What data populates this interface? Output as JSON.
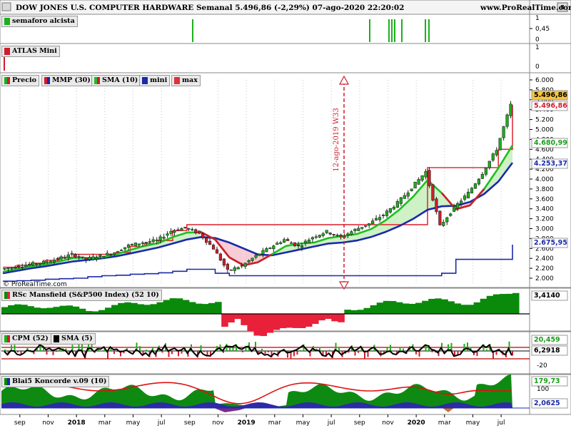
{
  "header": {
    "title": "DOW JONES U.S. COMPUTER HARDWARE Semanal 5.496,86 (-2,29%) 07-ago-2020 22:20:02",
    "site": "www.ProRealTime.com",
    "watermark": "© ProRealTime.com"
  },
  "panels": {
    "semaforo": {
      "label": "semaforo alcista",
      "ticks": [
        "1",
        "0,45",
        "0"
      ]
    },
    "atlas": {
      "label": "ATLAS Mini",
      "ticks": [
        "1",
        "0"
      ]
    },
    "price": {
      "legend": [
        "Precio",
        "MMP (30)",
        "SMA (10)",
        "mini",
        "max"
      ],
      "ticks": [
        "6.000",
        "5.800",
        "5.600",
        "5.400",
        "5.200",
        "5.000",
        "4.800",
        "4.600",
        "4.400",
        "4.200",
        "4.000",
        "3.800",
        "3.600",
        "3.400",
        "3.200",
        "3.000",
        "2.800",
        "2.600",
        "2.400",
        "2.200",
        "2.000"
      ],
      "annotation": "12-ago-2019 W33",
      "tags": [
        {
          "text": "5.496,86",
          "bg": "#f5c542",
          "fg": "#000000"
        },
        {
          "text": "5.496,86",
          "bg": "#ffffff",
          "fg": "#d01c2c"
        },
        {
          "text": "4.680,99",
          "bg": "#ffffff",
          "fg": "#1a9e1a"
        },
        {
          "text": "4.253,37",
          "bg": "#ffffff",
          "fg": "#1a2aa8"
        },
        {
          "text": "2.675,95",
          "bg": "#ffffff",
          "fg": "#1a2aa8"
        }
      ]
    },
    "rsc": {
      "label": "RSc Mansfield (S&P500 Index) (52 10)",
      "value": "3,4140"
    },
    "cpm": {
      "legend": [
        "CPM (52)",
        "SMA (5)"
      ],
      "ticks": [
        "20,459",
        "6,2918",
        "-20"
      ]
    },
    "koncorde": {
      "label": "Blai5 Koncorde v.09 (10)",
      "ticks": [
        "179,73",
        "100",
        "2,0625"
      ]
    }
  },
  "x_axis": [
    {
      "label": "sep",
      "bold": false
    },
    {
      "label": "nov",
      "bold": false
    },
    {
      "label": "2018",
      "bold": true
    },
    {
      "label": "mar",
      "bold": false
    },
    {
      "label": "may",
      "bold": false
    },
    {
      "label": "jul",
      "bold": false
    },
    {
      "label": "sep",
      "bold": false
    },
    {
      "label": "nov",
      "bold": false
    },
    {
      "label": "2019",
      "bold": true
    },
    {
      "label": "mar",
      "bold": false
    },
    {
      "label": "may",
      "bold": false
    },
    {
      "label": "jul",
      "bold": false
    },
    {
      "label": "sep",
      "bold": false
    },
    {
      "label": "nov",
      "bold": false
    },
    {
      "label": "2020",
      "bold": true
    },
    {
      "label": "mar",
      "bold": false
    },
    {
      "label": "may",
      "bold": false
    },
    {
      "label": "jul",
      "bold": false
    }
  ],
  "colors": {
    "up": "#1bb01b",
    "down": "#d01c2c",
    "mmp": "#d01c2c",
    "sma": "#1fbf1f",
    "mini": "#1a2aa8",
    "max": "#e0303a",
    "rsc_pos": "#0a8a0a",
    "rsc_neg": "#e8203a"
  },
  "chart_data": [
    {
      "type": "line",
      "title": "DOW JONES U.S. COMPUTER HARDWARE Semanal",
      "x": [
        "2017-08",
        "2017-09",
        "2017-10",
        "2017-11",
        "2017-12",
        "2018-01",
        "2018-02",
        "2018-03",
        "2018-04",
        "2018-05",
        "2018-06",
        "2018-07",
        "2018-08",
        "2018-09",
        "2018-10",
        "2018-11",
        "2018-12",
        "2019-01",
        "2019-02",
        "2019-03",
        "2019-04",
        "2019-05",
        "2019-06",
        "2019-07",
        "2019-08",
        "2019-09",
        "2019-10",
        "2019-11",
        "2019-12",
        "2020-01",
        "2020-02",
        "2020-03",
        "2020-04",
        "2020-05",
        "2020-06",
        "2020-07",
        "2020-08"
      ],
      "series": [
        {
          "name": "Precio",
          "values": [
            2180,
            2230,
            2280,
            2320,
            2390,
            2480,
            2380,
            2450,
            2520,
            2660,
            2720,
            2760,
            2950,
            3020,
            2900,
            2600,
            2150,
            2250,
            2450,
            2620,
            2780,
            2640,
            2830,
            2940,
            2820,
            2980,
            3100,
            3280,
            3520,
            3830,
            4150,
            3050,
            3420,
            3720,
            4120,
            4600,
            5497
          ]
        },
        {
          "name": "MMP (30)",
          "values": [
            2100,
            2150,
            2200,
            2240,
            2290,
            2340,
            2370,
            2400,
            2440,
            2500,
            2560,
            2620,
            2700,
            2780,
            2830,
            2810,
            2720,
            2600,
            2480,
            2460,
            2520,
            2580,
            2640,
            2700,
            2720,
            2760,
            2830,
            2930,
            3050,
            3200,
            3380,
            3450,
            3460,
            3540,
            3700,
            3950,
            4330
          ]
        },
        {
          "name": "SMA (10)",
          "values": [
            2130,
            2190,
            2240,
            2280,
            2340,
            2410,
            2410,
            2420,
            2480,
            2570,
            2650,
            2710,
            2830,
            2920,
            2930,
            2780,
            2420,
            2260,
            2320,
            2480,
            2650,
            2700,
            2720,
            2810,
            2850,
            2890,
            2990,
            3160,
            3380,
            3650,
            3980,
            3720,
            3390,
            3470,
            3800,
            4220,
            4681
          ]
        },
        {
          "name": "mini",
          "values": [
            1940,
            1950,
            1960,
            1980,
            1990,
            2000,
            2030,
            2050,
            2060,
            2080,
            2090,
            2110,
            2140,
            2180,
            2180,
            2100,
            2050,
            2050,
            2050,
            2050,
            2050,
            2050,
            2050,
            2050,
            2050,
            2050,
            2050,
            2050,
            2050,
            2050,
            2050,
            2100,
            2380,
            2380,
            2380,
            2380,
            2676
          ]
        },
        {
          "name": "max",
          "values": [
            2220,
            2260,
            2300,
            2360,
            2420,
            2480,
            2480,
            2480,
            2520,
            2640,
            2700,
            2760,
            2960,
            3080,
            3080,
            3080,
            3080,
            3080,
            3080,
            3080,
            3080,
            3080,
            3080,
            3080,
            3080,
            3080,
            3080,
            3080,
            3080,
            3080,
            4230,
            4230,
            4230,
            4230,
            4230,
            4600,
            5497
          ]
        }
      ],
      "ylim": [
        1950,
        6050
      ]
    },
    {
      "type": "area",
      "title": "RSc Mansfield (S&P500 Index) (52 10)",
      "x": [
        "2017-08",
        "2017-11",
        "2018-02",
        "2018-05",
        "2018-08",
        "2018-11",
        "2019-02",
        "2019-05",
        "2019-08",
        "2019-11",
        "2020-02",
        "2020-05",
        "2020-08"
      ],
      "values": [
        1.0,
        1.2,
        0.6,
        1.5,
        2.0,
        1.7,
        -2.6,
        -1.2,
        0.6,
        1.6,
        2.0,
        1.6,
        3.414
      ]
    },
    {
      "type": "bar",
      "title": "CPM (52)",
      "series": [
        {
          "name": "CPM (52)",
          "values": [
            20.459
          ]
        },
        {
          "name": "SMA (5)",
          "values": [
            6.2918
          ]
        }
      ],
      "ylim": [
        -25,
        25
      ]
    },
    {
      "type": "area",
      "title": "Blai5 Koncorde v.09 (10)",
      "values": [
        179.73,
        100,
        2.0625
      ]
    }
  ]
}
